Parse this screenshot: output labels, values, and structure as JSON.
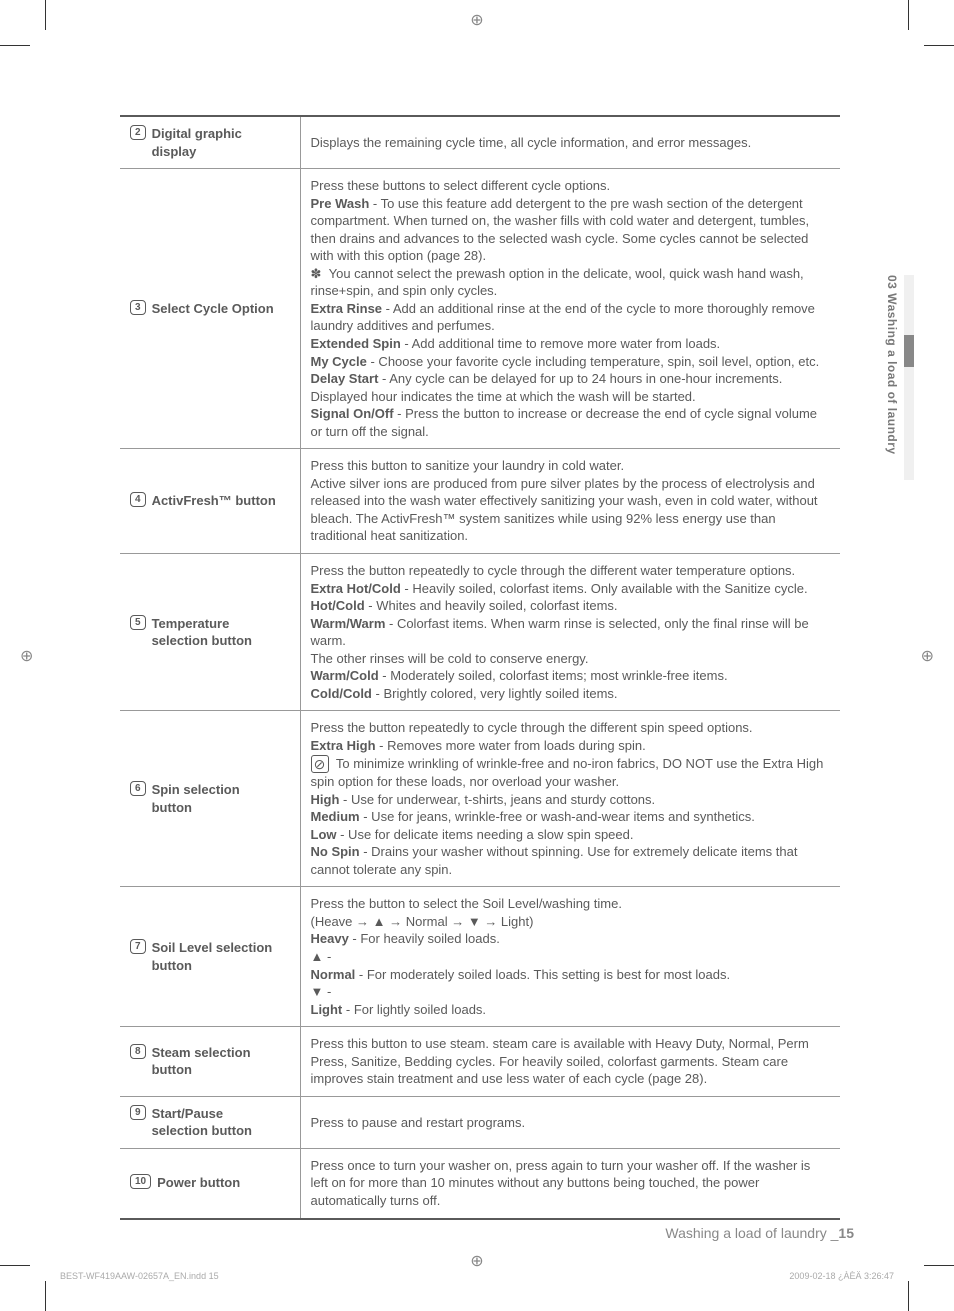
{
  "side_tab": "03 Washing a load of laundry",
  "rows": [
    {
      "num": "2",
      "label": "Digital graphic display",
      "body": "Displays the remaining cycle time, all cycle information, and error messages."
    },
    {
      "num": "3",
      "label": "Select Cycle Option",
      "body": "Press these buttons to select different cycle options.<br><b>Pre Wash</b> - To use this feature add detergent to the pre wash section of the detergent compartment. When turned on, the washer fills with cold water and detergent, tumbles, then drains and advances to the selected wash cycle. Some cycles cannot be selected with with this option (page 28).<br>✽&nbsp;&nbsp;You cannot select the prewash option in the delicate, wool, quick wash hand wash, rinse+spin, and spin only cycles.<br><b>Extra Rinse</b> - Add an additional rinse at the end of the cycle to more thoroughly remove laundry additives and perfumes.<br><b>Extended Spin</b> - Add additional time to remove more water from loads.<br><b>My Cycle</b> - Choose your favorite cycle including temperature, spin, soil level, option, etc.<br><b>Delay Start</b> - Any cycle can be delayed for up to 24 hours in one-hour increments. Displayed hour indicates the time at which the wash will be started.<br><b>Signal On/Off</b> - Press the button to increase or decrease the end of cycle signal volume or turn off the signal."
    },
    {
      "num": "4",
      "label": "ActivFresh™ button",
      "body": "Press this button to sanitize your laundry in cold water.<br>Active silver ions are produced from pure silver plates by the process of electrolysis and released into the wash water effectively sanitizing your wash, even in cold water, without bleach. The ActivFresh™ system sanitizes while using 92% less energy use than traditional heat sanitization."
    },
    {
      "num": "5",
      "label": "Temperature selection button",
      "body": "Press the button repeatedly to cycle through the different water temperature options.<br><b>Extra Hot/Cold</b> - Heavily soiled, colorfast items. Only available with the Sanitize cycle.<br><b>Hot/Cold</b> - Whites and heavily soiled, colorfast items.<br><b>Warm/Warm</b> - Colorfast items. When warm rinse is selected, only the final rinse will be warm.<br>The other rinses will be cold to conserve energy.<br><b>Warm/Cold</b> - Moderately soiled, colorfast items; most wrinkle-free items.<br><b>Cold/Cold</b> - Brightly colored, very lightly soiled items."
    },
    {
      "num": "6",
      "label": "Spin selection button",
      "body": "Press the button repeatedly to cycle through the different spin speed options.<br><b>Extra High</b> - Removes more water from loads during spin.<br><span class=\"noiron-icon\" data-name=\"no-iron-icon\" data-interactable=\"false\">⊘</span> To minimize wrinkling of wrinkle-free and no-iron fabrics, DO NOT use the Extra High spin option for these loads, nor overload your washer.<br><b>High</b> - Use for underwear, t-shirts, jeans and sturdy cottons.<br><b>Medium</b> - Use for jeans, wrinkle-free or wash-and-wear items and synthetics.<br><b>Low</b> - Use for delicate items needing a slow spin speed.<br><b>No Spin</b> - Drains your washer without spinning. Use for extremely delicate items that cannot tolerate any spin."
    },
    {
      "num": "7",
      "label": "Soil Level selection button",
      "body": "Press the button to select the Soil Level/washing time.<br>(Heave → ▲ → Normal → ▼ → Light)<br><b>Heavy</b> - For heavily soiled loads.<br>▲ -<br><b>Normal</b> - For moderately soiled loads. This setting is best for most loads.<br>▼ -<br><b>Light</b> - For lightly soiled loads."
    },
    {
      "num": "8",
      "label": "Steam selection button",
      "body": "Press this button to use steam. steam care is available with Heavy Duty, Normal, Perm Press, Sanitize, Bedding cycles. For heavily soiled, colorfast garments. Steam care improves stain treatment and use less water of each cycle (page 28)."
    },
    {
      "num": "9",
      "label": "Start/Pause selection button",
      "body": "Press to pause and restart programs."
    },
    {
      "num": "10",
      "label": "Power button",
      "body": "Press once to turn your washer on, press again to turn your washer off. If the washer is left on for more than 10 minutes without any buttons being touched, the power automatically turns off."
    }
  ],
  "footer": {
    "section": "Washing a load of laundry _",
    "pagenum": "15",
    "filename": "BEST-WF419AAW-02657A_EN.indd   15",
    "timestamp": "2009-02-18   ¿ÀÈÄ 3:26:47"
  }
}
